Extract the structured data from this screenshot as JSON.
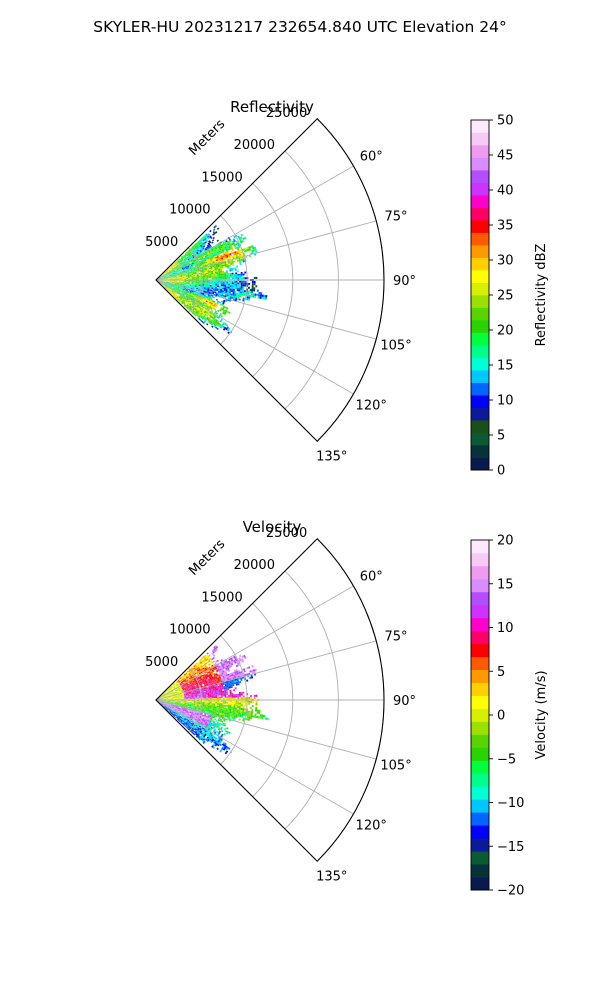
{
  "suptitle": "SKYLER-HU  20231217  232654.840 UTC Elevation 24°",
  "chart_data": [
    {
      "type": "polar-sector-heatmap",
      "title": "Reflectivity",
      "radial_axis_label": "Meters",
      "r_ticks": [
        5000,
        10000,
        15000,
        20000,
        25000
      ],
      "r_lim": [
        0,
        25000
      ],
      "theta_ticks": [
        60,
        75,
        90,
        105,
        120,
        135
      ],
      "theta_tick_labels": [
        "60°",
        "75°",
        "90°",
        "105°",
        "120°",
        "135°"
      ],
      "theta_lim": [
        45,
        135
      ],
      "grid": true,
      "colorbar": {
        "label": "Reflectivity dBZ",
        "vmin": 0,
        "vmax": 50,
        "ticks": [
          0,
          5,
          10,
          15,
          20,
          25,
          30,
          35,
          40,
          45,
          50
        ],
        "tick_labels": [
          "0",
          "5",
          "10",
          "15",
          "20",
          "25",
          "30",
          "35",
          "40",
          "45",
          "50"
        ],
        "colors": [
          "#0a1a4f",
          "#07323a",
          "#0b5a33",
          "#1a4f1a",
          "#0a1a9a",
          "#0000ff",
          "#0066ff",
          "#00c8ff",
          "#00ffd5",
          "#00ff8a",
          "#00ff3c",
          "#2ad400",
          "#58d400",
          "#9be000",
          "#d7f000",
          "#ffff00",
          "#ffcf00",
          "#ff9900",
          "#ff5a00",
          "#ff0000",
          "#ff0066",
          "#ff00cc",
          "#cc33ff",
          "#b34dff",
          "#d98cff",
          "#ee9bf0",
          "#f7c9f7",
          "#fde8fd"
        ]
      }
    },
    {
      "type": "polar-sector-heatmap",
      "title": "Velocity",
      "radial_axis_label": "Meters",
      "r_ticks": [
        5000,
        10000,
        15000,
        20000,
        25000
      ],
      "r_lim": [
        0,
        25000
      ],
      "theta_ticks": [
        60,
        75,
        90,
        105,
        120,
        135
      ],
      "theta_tick_labels": [
        "60°",
        "75°",
        "90°",
        "105°",
        "120°",
        "135°"
      ],
      "theta_lim": [
        45,
        135
      ],
      "grid": true,
      "colorbar": {
        "label": "Velocity (m/s)",
        "vmin": -20,
        "vmax": 20,
        "ticks": [
          -20,
          -15,
          -10,
          -5,
          0,
          5,
          10,
          15,
          20
        ],
        "tick_labels": [
          "−20",
          "−15",
          "−10",
          "−5",
          "0",
          "5",
          "10",
          "15",
          "20"
        ],
        "colors": [
          "#0a1a4f",
          "#07323a",
          "#0b5a33",
          "#0a1a9a",
          "#0000ff",
          "#0066ff",
          "#00c8ff",
          "#00ffd5",
          "#00ff8a",
          "#00ff3c",
          "#2ad400",
          "#58d400",
          "#9be000",
          "#d7f000",
          "#ffff00",
          "#ffcf00",
          "#ff9900",
          "#ff5a00",
          "#ff0000",
          "#ff0066",
          "#ff00cc",
          "#cc33ff",
          "#b34dff",
          "#d98cff",
          "#ee9bf0",
          "#f7c9f7",
          "#fde8fd"
        ]
      }
    }
  ]
}
